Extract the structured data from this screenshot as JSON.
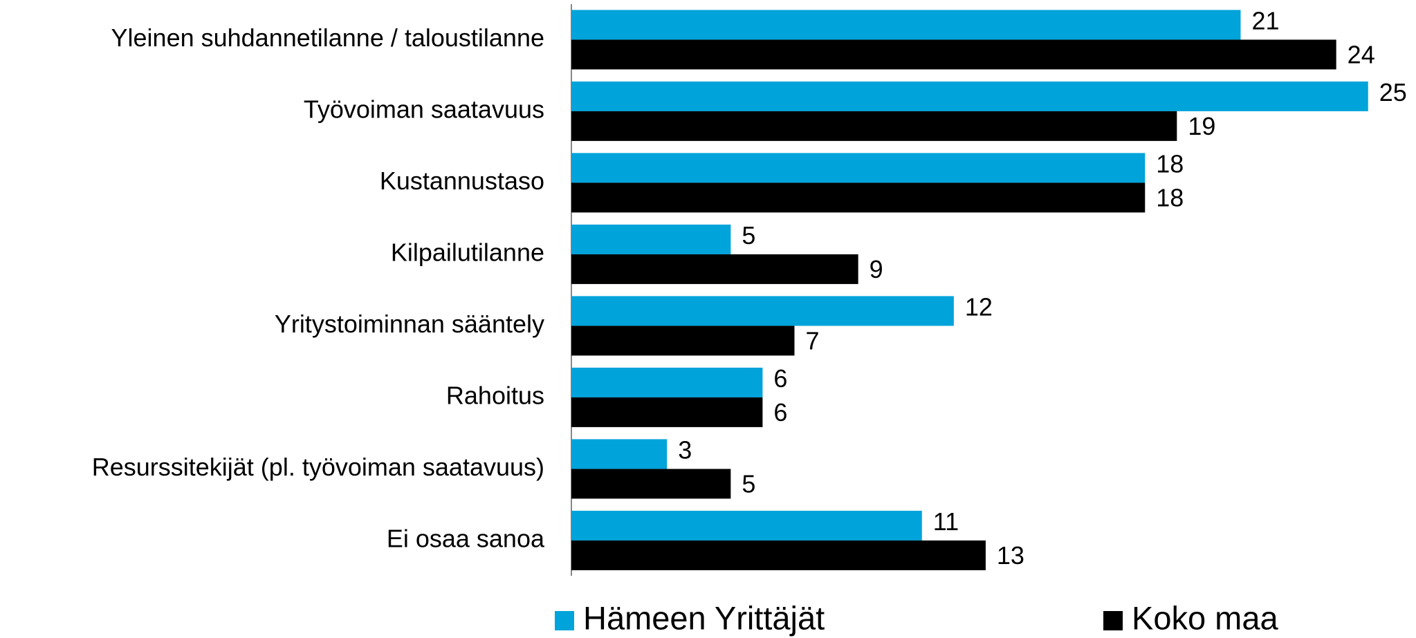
{
  "chart_data": {
    "type": "bar",
    "orientation": "horizontal",
    "categories": [
      "Yleinen suhdannetilanne / taloustilanne",
      "Työvoiman saatavuus",
      "Kustannustaso",
      "Kilpailutilanne",
      "Yritystoiminnan sääntely",
      "Rahoitus",
      "Resurssitekijät (pl. työvoiman saatavuus)",
      "Ei osaa sanoa"
    ],
    "series": [
      {
        "name": "Hämeen Yrittäjät",
        "color": "#00a3da",
        "values": [
          21,
          25,
          18,
          5,
          12,
          6,
          3,
          11
        ]
      },
      {
        "name": "Koko maa",
        "color": "#000000",
        "values": [
          24,
          19,
          18,
          9,
          7,
          6,
          5,
          13
        ]
      }
    ],
    "legend": "bottom"
  }
}
